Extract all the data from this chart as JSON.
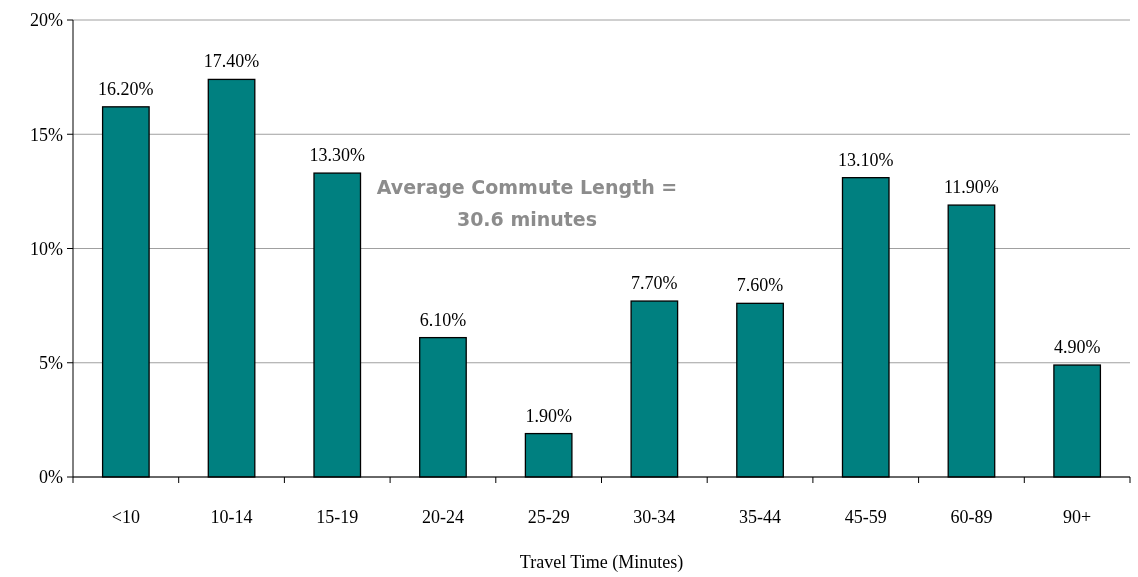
{
  "chart_data": {
    "type": "bar",
    "xlabel": "Travel Time (Minutes)",
    "categories": [
      "<10",
      "10-14",
      "15-19",
      "20-24",
      "25-29",
      "30-34",
      "35-44",
      "45-59",
      "60-89",
      "90+"
    ],
    "values": [
      16.2,
      17.4,
      13.3,
      6.1,
      1.9,
      7.7,
      7.6,
      13.1,
      11.9,
      4.9
    ],
    "value_labels": [
      "16.20%",
      "17.40%",
      "13.30%",
      "6.10%",
      "1.90%",
      "7.70%",
      "7.60%",
      "13.10%",
      "11.90%",
      "4.90%"
    ],
    "color": "#008080",
    "ylim": [
      0,
      20
    ],
    "yticks": [
      {
        "value": 0,
        "label": "0%"
      },
      {
        "value": 5,
        "label": "5%"
      },
      {
        "value": 10,
        "label": "10%"
      },
      {
        "value": 15,
        "label": "15%"
      },
      {
        "value": 20,
        "label": "20%"
      }
    ],
    "grid": "y",
    "annotations": [
      "Average Commute Length = 30.6 minutes"
    ]
  }
}
